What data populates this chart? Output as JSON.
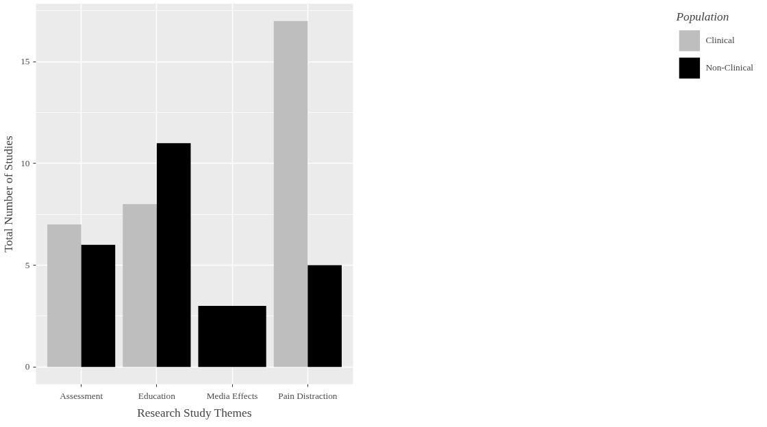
{
  "chart_data": {
    "type": "bar",
    "xlabel": "Research Study Themes",
    "ylabel": "Total Number of Studies",
    "legend_title": "Population",
    "categories": [
      "Assessment",
      "Education",
      "Media Effects",
      "Pain Distraction"
    ],
    "series": [
      {
        "name": "Clinical",
        "color": "#bebebe",
        "values": [
          7,
          8,
          null,
          17
        ]
      },
      {
        "name": "Non-Clinical",
        "color": "#000000",
        "values": [
          6,
          11,
          3,
          5
        ]
      }
    ],
    "ylim": [
      -0.85,
      17.85
    ],
    "yticks": [
      0,
      5,
      10,
      15
    ],
    "grid": true,
    "legend": "right"
  }
}
